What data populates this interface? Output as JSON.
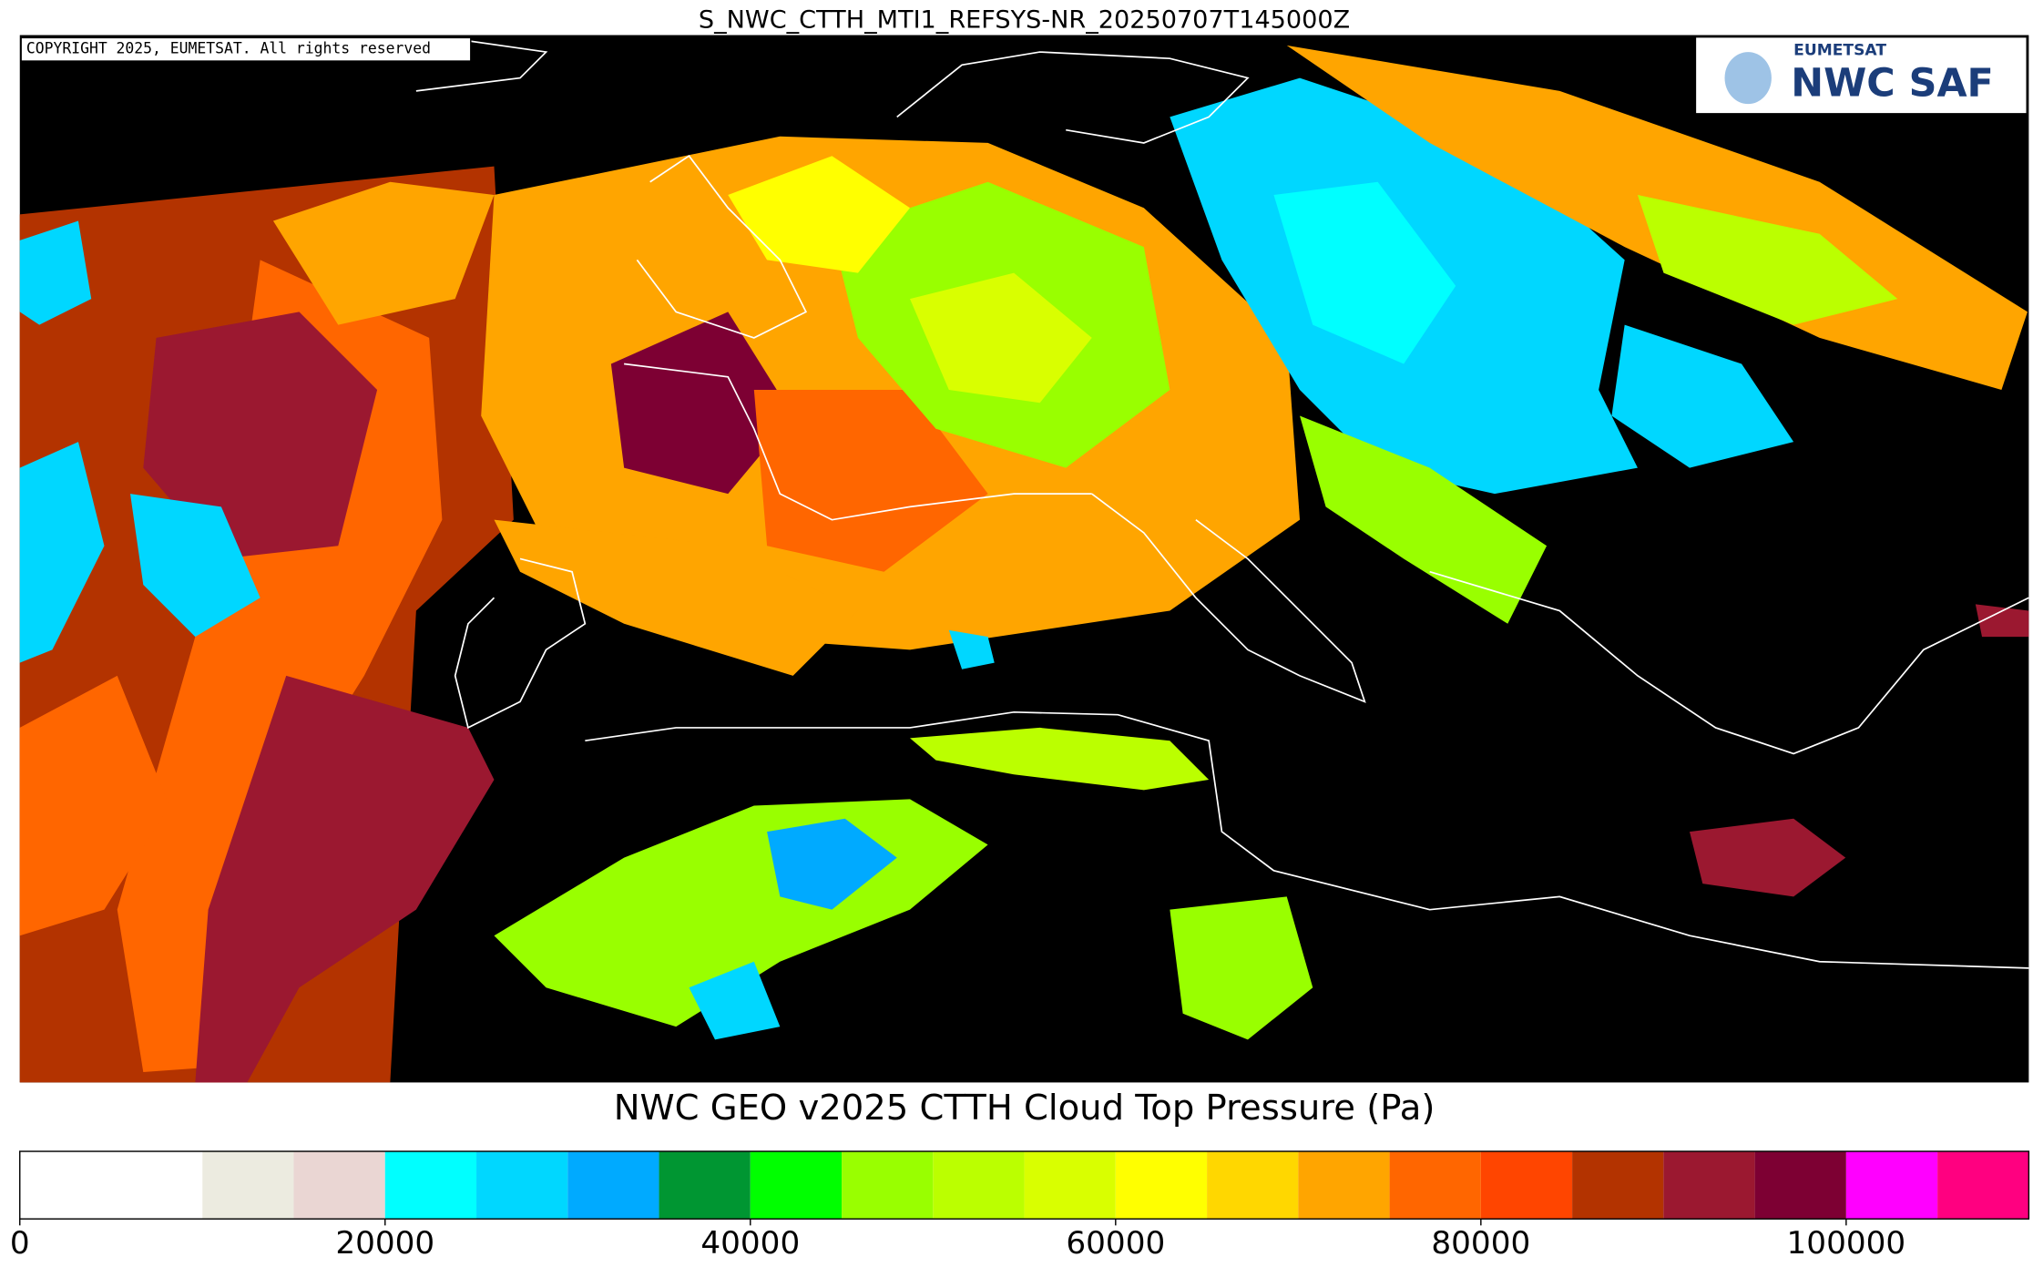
{
  "title": "S_NWC_CTTH_MTI1_REFSYS-NR_20250707T145000Z",
  "copyright": "COPYRIGHT 2025, EUMETSAT. All rights reserved",
  "logo": {
    "org": "EUMETSAT",
    "product": "NWC SAF"
  },
  "colorbar": {
    "title": "NWC GEO v2025 CTTH Cloud Top Pressure (Pa)",
    "xlim": [
      0,
      110000
    ],
    "bounds": [
      0,
      10000,
      15000,
      20000,
      25000,
      30000,
      35000,
      40000,
      45000,
      50000,
      55000,
      60000,
      65000,
      70000,
      75000,
      80000,
      85000,
      90000,
      95000,
      100000,
      105000,
      110000
    ],
    "colors": [
      "#ffffff",
      "#ecebe0",
      "#ead6d3",
      "#00ffff",
      "#00d7ff",
      "#00aaff",
      "#009632",
      "#00ff00",
      "#99ff00",
      "#bbff00",
      "#d9ff00",
      "#ffff00",
      "#ffd700",
      "#ffa500",
      "#ff6600",
      "#ff4500",
      "#b33300",
      "#9b1830",
      "#7d0033",
      "#ff00ff",
      "#ff0080"
    ],
    "xticks": [
      0,
      20000,
      40000,
      60000,
      80000,
      100000
    ]
  }
}
